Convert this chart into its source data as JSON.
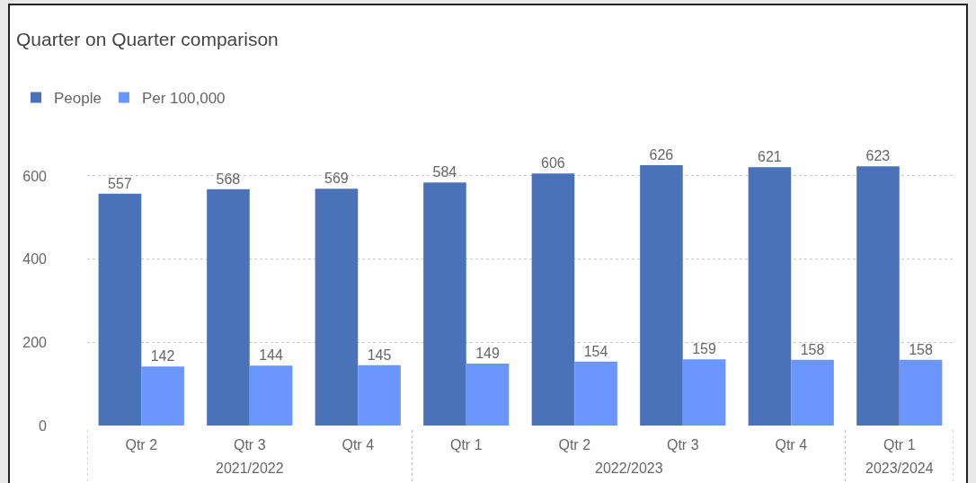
{
  "chart_data": {
    "type": "bar",
    "title": "Quarter on Quarter comparison",
    "categories": [
      "Qtr 2",
      "Qtr 3",
      "Qtr 4",
      "Qtr 1",
      "Qtr 2",
      "Qtr 3",
      "Qtr 4",
      "Qtr 1"
    ],
    "series": [
      {
        "name": "People",
        "color": "#4a72b8",
        "values": [
          557,
          568,
          569,
          584,
          606,
          626,
          621,
          623
        ]
      },
      {
        "name": "Per 100,000",
        "color": "#6b96fe",
        "values": [
          142,
          144,
          145,
          149,
          154,
          159,
          158,
          158
        ]
      }
    ],
    "ylim": [
      0,
      1012
    ],
    "yticks": [
      0,
      200,
      400,
      600
    ],
    "grid": "y",
    "legend": "top left",
    "data_labels": true,
    "annotations": [
      "2021/2022",
      "2022/2023",
      "2023/2024"
    ]
  }
}
